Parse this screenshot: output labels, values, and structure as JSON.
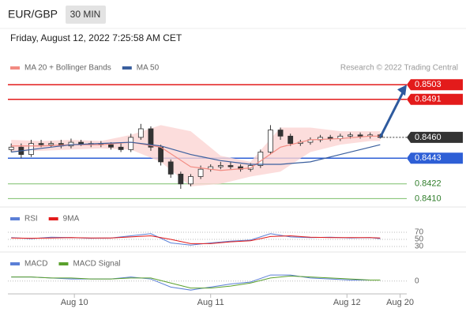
{
  "header": {
    "symbol": "EUR/GBP",
    "interval": "30 MIN",
    "timestamp": "Friday, August 12, 2022 7:25:58 AM CET",
    "source": "Research © 2022 Trading Central"
  },
  "chart_data": [
    {
      "type": "candlestick",
      "xlim": [
        0,
        120
      ],
      "ylim": [
        0.8406,
        0.8507
      ],
      "x": [
        1,
        4,
        7,
        10,
        13,
        16,
        19,
        22,
        25,
        28,
        31,
        34,
        37,
        40,
        43,
        46,
        49,
        52,
        55,
        58,
        61,
        64,
        67,
        70,
        73,
        76,
        79,
        82,
        85,
        88,
        91,
        94,
        97,
        100,
        103,
        106,
        109,
        112
      ],
      "open": [
        0.845,
        0.8452,
        0.8446,
        0.8455,
        0.8454,
        0.8455,
        0.8453,
        0.8456,
        0.8454,
        0.8455,
        0.8454,
        0.8452,
        0.845,
        0.846,
        0.8467,
        0.8452,
        0.844,
        0.843,
        0.8422,
        0.8428,
        0.8434,
        0.8436,
        0.8437,
        0.8436,
        0.8434,
        0.8437,
        0.8448,
        0.8466,
        0.8461,
        0.8455,
        0.8456,
        0.8458,
        0.846,
        0.8459,
        0.8461,
        0.8462,
        0.8461,
        0.8462
      ],
      "high": [
        0.8455,
        0.8455,
        0.8458,
        0.8458,
        0.8457,
        0.8458,
        0.8459,
        0.8458,
        0.8457,
        0.8457,
        0.8456,
        0.8455,
        0.8463,
        0.8471,
        0.8469,
        0.8454,
        0.8442,
        0.8432,
        0.843,
        0.8437,
        0.8438,
        0.844,
        0.844,
        0.8438,
        0.8439,
        0.845,
        0.847,
        0.8468,
        0.8463,
        0.8458,
        0.846,
        0.8462,
        0.8462,
        0.8463,
        0.8464,
        0.8464,
        0.8464,
        0.8463
      ],
      "low": [
        0.8448,
        0.8443,
        0.8444,
        0.8452,
        0.8452,
        0.8451,
        0.8451,
        0.8453,
        0.8452,
        0.8452,
        0.845,
        0.8448,
        0.8448,
        0.8458,
        0.8449,
        0.8437,
        0.8427,
        0.8418,
        0.842,
        0.8426,
        0.8432,
        0.8434,
        0.8434,
        0.8432,
        0.8432,
        0.8435,
        0.8446,
        0.8458,
        0.8453,
        0.8453,
        0.8454,
        0.8456,
        0.8457,
        0.8457,
        0.8459,
        0.8459,
        0.8459,
        0.8459
      ],
      "close": [
        0.8452,
        0.8446,
        0.8455,
        0.8454,
        0.8455,
        0.8453,
        0.8456,
        0.8454,
        0.8455,
        0.8454,
        0.8452,
        0.845,
        0.846,
        0.8467,
        0.8452,
        0.844,
        0.843,
        0.8422,
        0.8428,
        0.8434,
        0.8436,
        0.8437,
        0.8436,
        0.8434,
        0.8437,
        0.8448,
        0.8466,
        0.8461,
        0.8455,
        0.8456,
        0.8458,
        0.846,
        0.8459,
        0.8461,
        0.8462,
        0.8461,
        0.8462,
        0.846
      ],
      "up_color": "#ffffff",
      "down_color": "#333333",
      "series": [
        {
          "name": "MA 20 + Bollinger Bands",
          "color": "#f28b82",
          "band_color": "#fbd5d3",
          "x": [
            1,
            10,
            19,
            28,
            37,
            46,
            55,
            64,
            73,
            82,
            91,
            100,
            109,
            112
          ],
          "values": [
            0.8453,
            0.8453,
            0.8454,
            0.8454,
            0.8456,
            0.8452,
            0.8436,
            0.8433,
            0.8435,
            0.8452,
            0.8458,
            0.8459,
            0.8461,
            0.8461
          ],
          "upper": [
            0.8458,
            0.8457,
            0.8458,
            0.8457,
            0.8462,
            0.847,
            0.8465,
            0.8445,
            0.844,
            0.8468,
            0.8468,
            0.8465,
            0.8465,
            0.8465
          ],
          "lower": [
            0.8448,
            0.8449,
            0.845,
            0.8451,
            0.845,
            0.844,
            0.842,
            0.8422,
            0.8428,
            0.8432,
            0.8448,
            0.8454,
            0.8457,
            0.8457
          ]
        },
        {
          "name": "MA 50",
          "color": "#3a5f9e",
          "x": [
            1,
            10,
            19,
            28,
            37,
            46,
            55,
            64,
            73,
            82,
            91,
            100,
            109,
            112
          ],
          "values": [
            0.8448,
            0.8451,
            0.8454,
            0.8455,
            0.8456,
            0.8453,
            0.8446,
            0.8441,
            0.8438,
            0.8438,
            0.844,
            0.8446,
            0.8452,
            0.8454
          ]
        }
      ],
      "levels": [
        {
          "value": 0.8503,
          "label": "0.8503",
          "color": "#e31b1b",
          "boxed": true
        },
        {
          "value": 0.8491,
          "label": "0.8491",
          "color": "#e31b1b",
          "boxed": true
        },
        {
          "value": 0.846,
          "label": "0.8460",
          "color": "#333333",
          "boxed": true,
          "dotted": true
        },
        {
          "value": 0.8443,
          "label": "0.8443",
          "color": "#2e5fd6",
          "boxed": true
        },
        {
          "value": 0.8422,
          "label": "0.8422",
          "color": "#7bbf6a",
          "boxed": false
        },
        {
          "value": 0.841,
          "label": "0.8410",
          "color": "#7bbf6a",
          "boxed": false
        }
      ]
    },
    {
      "type": "line",
      "xlim": [
        0,
        120
      ],
      "ylim": [
        20,
        80
      ],
      "yticks": [
        70,
        50,
        30
      ],
      "x": [
        1,
        7,
        13,
        19,
        25,
        31,
        37,
        43,
        49,
        55,
        61,
        67,
        73,
        79,
        85,
        91,
        97,
        103,
        109,
        112
      ],
      "series": [
        {
          "name": "RSI",
          "color": "#5b7fd6",
          "values": [
            55,
            52,
            56,
            55,
            53,
            54,
            60,
            66,
            40,
            34,
            40,
            45,
            48,
            66,
            57,
            55,
            56,
            54,
            55,
            52
          ]
        },
        {
          "name": "9MA",
          "color": "#e31b1b",
          "values": [
            54,
            53,
            54,
            55,
            54,
            54,
            57,
            60,
            50,
            38,
            38,
            43,
            46,
            58,
            60,
            56,
            55,
            55,
            55,
            54
          ]
        }
      ]
    },
    {
      "type": "line",
      "xlim": [
        0,
        120
      ],
      "ylim": [
        -0.0012,
        0.001
      ],
      "yticks": [
        0
      ],
      "xticks": [
        {
          "value": 20,
          "label": "Aug 10"
        },
        {
          "value": 61,
          "label": "Aug 11"
        },
        {
          "value": 102,
          "label": "Aug 12"
        },
        {
          "value": 118,
          "label": "Aug 20"
        }
      ],
      "x": [
        1,
        7,
        13,
        19,
        25,
        31,
        37,
        43,
        49,
        55,
        61,
        67,
        73,
        79,
        85,
        91,
        97,
        103,
        109,
        112
      ],
      "series": [
        {
          "name": "MACD",
          "color": "#5b7fd6",
          "values": [
            0.0004,
            0.0004,
            0.0003,
            0.0002,
            0.0002,
            0.0002,
            0.0004,
            0.0002,
            -0.0006,
            -0.0009,
            -0.0006,
            -0.0003,
            -0.0001,
            0.0006,
            0.0006,
            0.0003,
            0.0002,
            0.0001,
            0.0001,
            0.0001
          ]
        },
        {
          "name": "MACD Signal",
          "color": "#5aa02c",
          "values": [
            0.0004,
            0.0004,
            0.0003,
            0.0003,
            0.0002,
            0.0002,
            0.0003,
            0.0003,
            -0.0002,
            -0.0007,
            -0.0007,
            -0.0005,
            -0.0002,
            0.0003,
            0.0005,
            0.0004,
            0.0003,
            0.0002,
            0.0001,
            0.0001
          ]
        }
      ]
    }
  ]
}
